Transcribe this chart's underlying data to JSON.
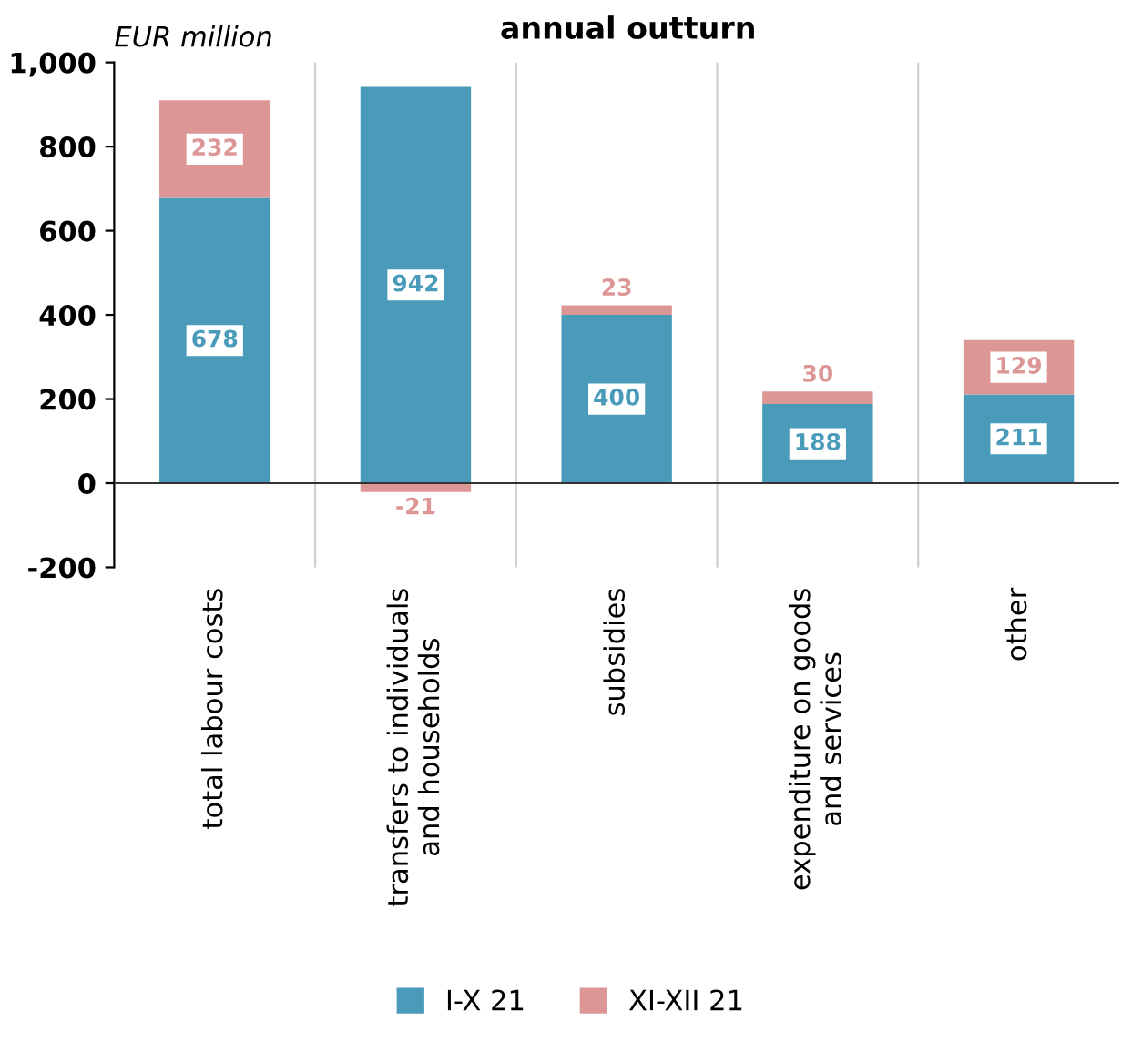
{
  "chart_data": {
    "type": "bar",
    "title": "annual outturn",
    "ylabel": "EUR million",
    "categories": [
      "total labour costs",
      "transfers to individuals\nand households",
      "subsidies",
      "expenditure on goods\nand services",
      "other"
    ],
    "series": [
      {
        "name": "I-X 21",
        "color": "#4a9aba",
        "values": [
          678,
          942,
          400,
          188,
          211
        ]
      },
      {
        "name": "XI-XII 21",
        "color": "#dc9696",
        "values": [
          232,
          -21,
          23,
          30,
          129
        ]
      }
    ],
    "stacked": true,
    "data_labels": true,
    "grid": "x",
    "legend": "bottom",
    "ylim": [
      -200,
      1000
    ],
    "yticks": [
      -200,
      0,
      200,
      400,
      600,
      800,
      {
        "value": 1000,
        "label": "1,000"
      }
    ]
  }
}
